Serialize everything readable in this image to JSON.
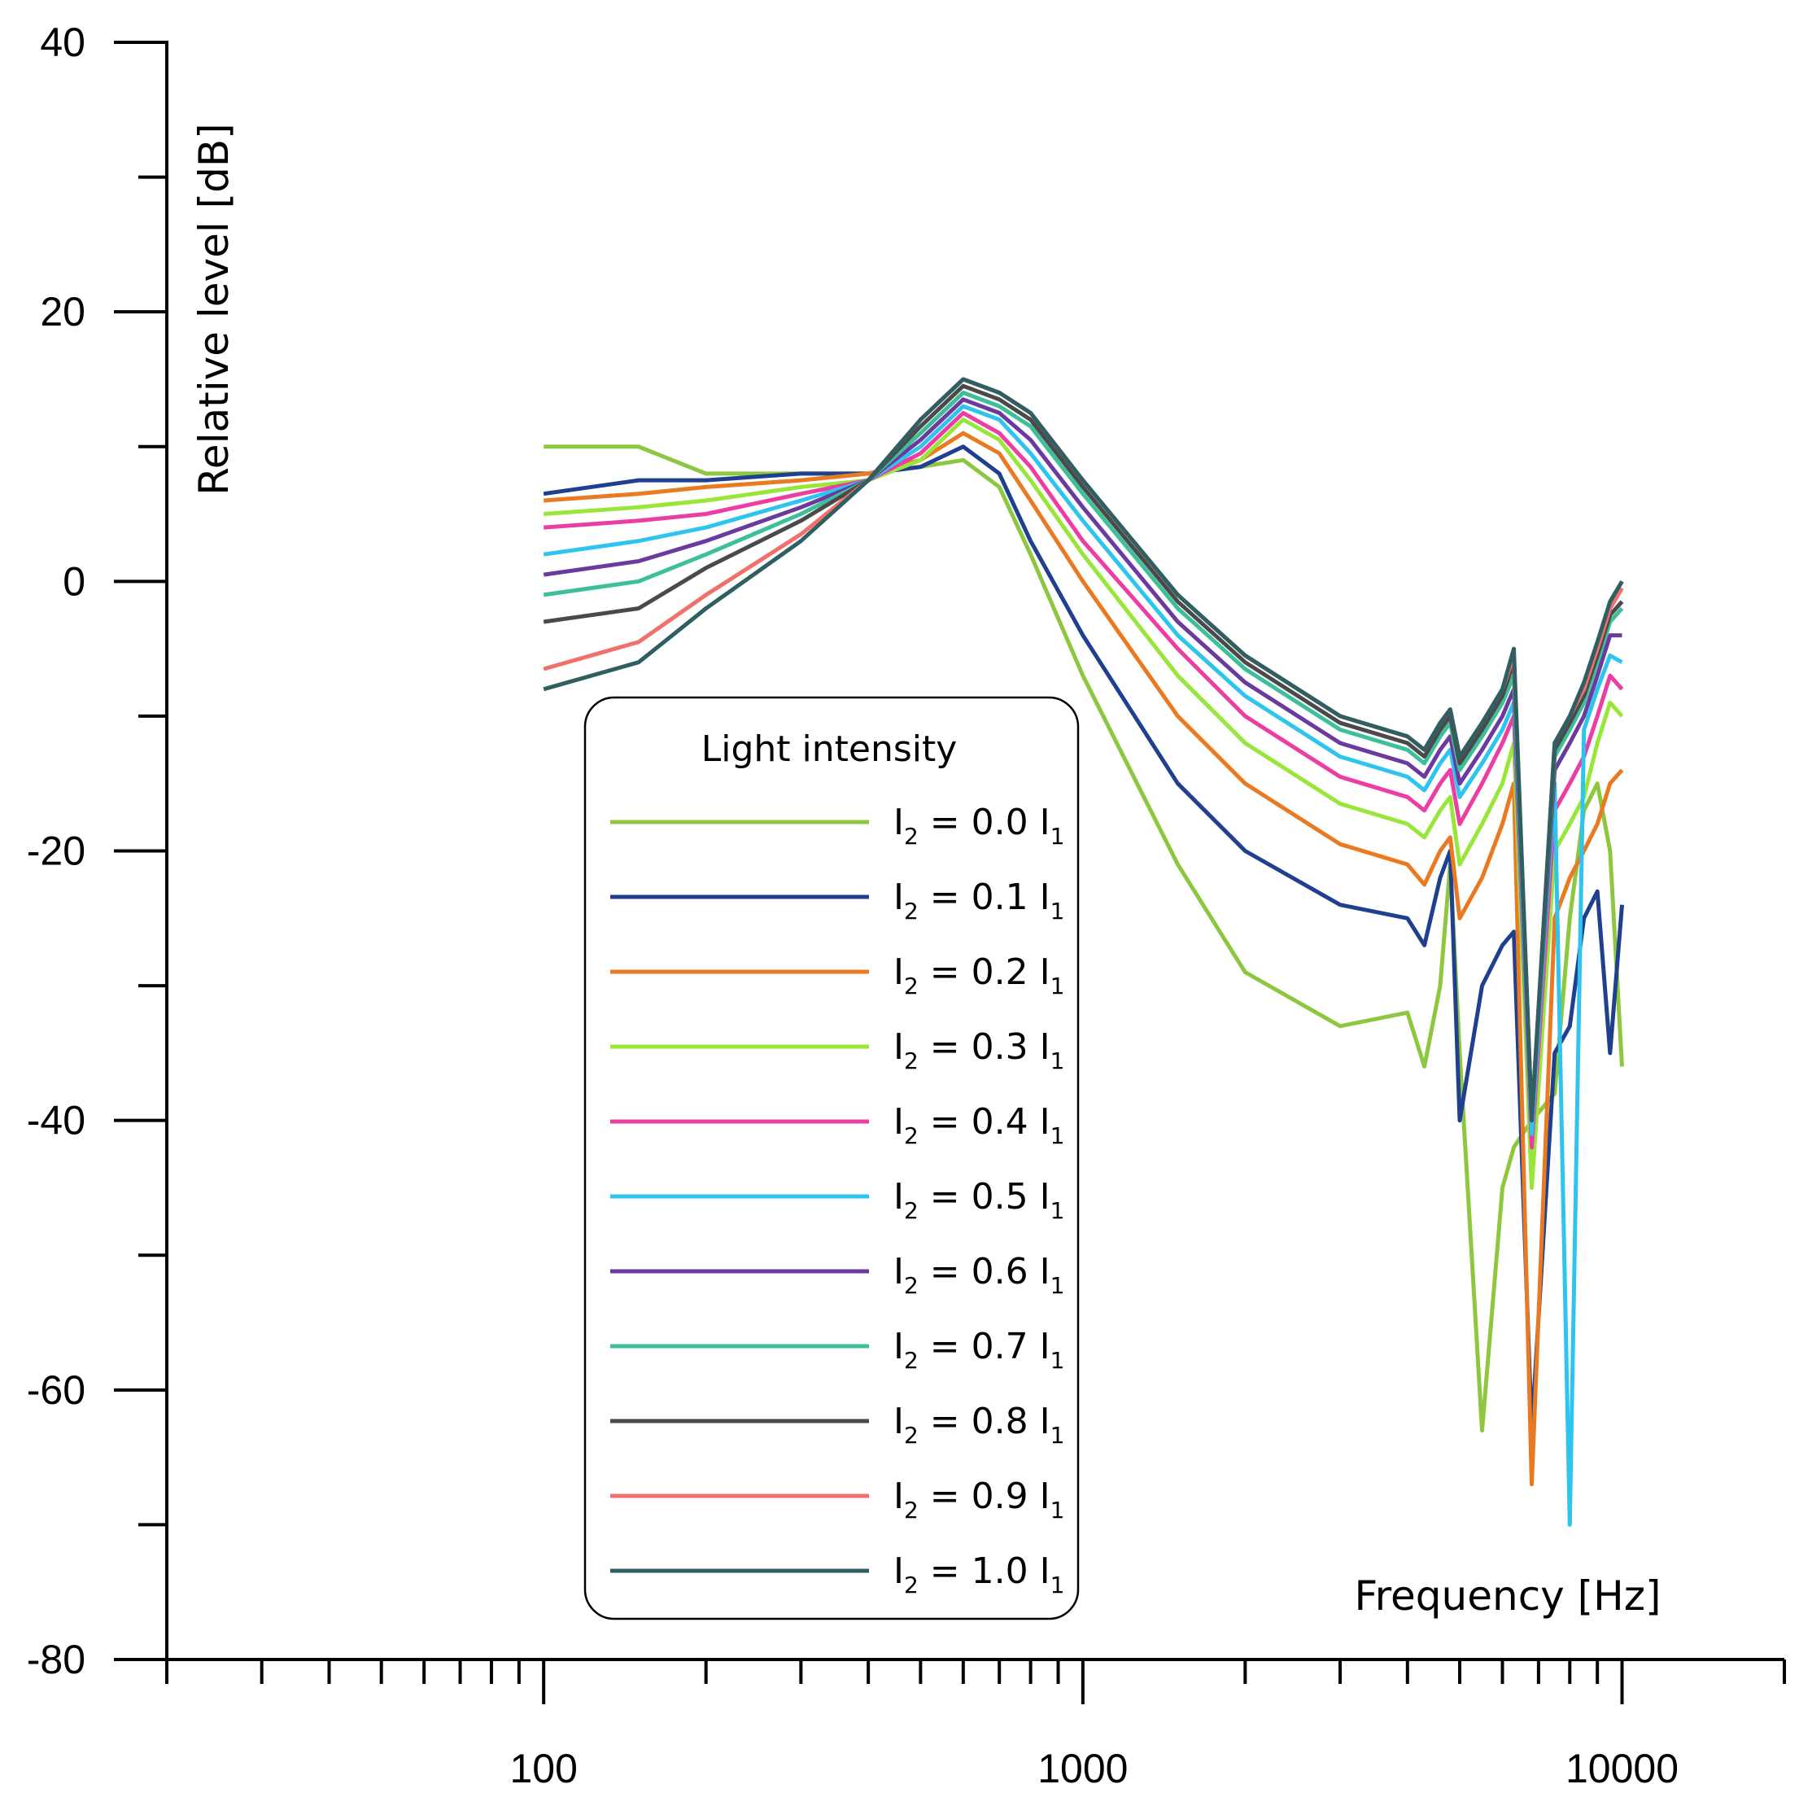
{
  "chart_data": {
    "type": "line",
    "xlabel": "Frequency [Hz]",
    "ylabel": "Relative level [dB]",
    "x_scale": "log",
    "xlim": [
      20,
      20000
    ],
    "ylim": [
      -80,
      40
    ],
    "x_tick_labels": [
      "100",
      "1000",
      "10000"
    ],
    "y_tick_labels": [
      "40",
      "20",
      "0",
      "-20",
      "-40",
      "-60",
      "-80"
    ],
    "grid": false,
    "legend": {
      "title": "Light intensity",
      "placement": "center-left",
      "entries": [
        {
          "prefix": "I",
          "sub": "2",
          "mid": " = 0.0 I",
          "sub2": "1"
        },
        {
          "prefix": "I",
          "sub": "2",
          "mid": " = 0.1 I",
          "sub2": "1"
        },
        {
          "prefix": "I",
          "sub": "2",
          "mid": " = 0.2 I",
          "sub2": "1"
        },
        {
          "prefix": "I",
          "sub": "2",
          "mid": " = 0.3 I",
          "sub2": "1"
        },
        {
          "prefix": "I",
          "sub": "2",
          "mid": " = 0.4 I",
          "sub2": "1"
        },
        {
          "prefix": "I",
          "sub": "2",
          "mid": " = 0.5 I",
          "sub2": "1"
        },
        {
          "prefix": "I",
          "sub": "2",
          "mid": " = 0.6 I",
          "sub2": "1"
        },
        {
          "prefix": "I",
          "sub": "2",
          "mid": " = 0.7 I",
          "sub2": "1"
        },
        {
          "prefix": "I",
          "sub": "2",
          "mid": " = 0.8 I",
          "sub2": "1"
        },
        {
          "prefix": "I",
          "sub": "2",
          "mid": " = 0.9 I",
          "sub2": "1"
        },
        {
          "prefix": "I",
          "sub": "2",
          "mid": " = 1.0 I",
          "sub2": "1"
        }
      ]
    },
    "x": [
      100,
      150,
      200,
      300,
      400,
      500,
      600,
      700,
      800,
      1000,
      1500,
      2000,
      3000,
      4000,
      4300,
      4600,
      4800,
      5000,
      5500,
      6000,
      6300,
      6800,
      7500,
      8000,
      8500,
      9000,
      9500,
      10000
    ],
    "series": [
      {
        "name": "I2 = 0.0 I1",
        "color": "#8dc63f",
        "values": [
          10,
          10,
          8,
          8,
          8,
          8.5,
          9,
          7,
          2,
          -7,
          -21,
          -29,
          -33,
          -32,
          -36,
          -30,
          -21,
          -35,
          -63,
          -45,
          -42,
          -40,
          -38,
          -25,
          -17,
          -15,
          -20,
          -36
        ]
      },
      {
        "name": "I2 = 0.1 I1",
        "color": "#1f3f8f",
        "values": [
          6.5,
          7.5,
          7.5,
          8,
          8,
          8.5,
          10,
          8,
          3,
          -4,
          -15,
          -20,
          -24,
          -25,
          -27,
          -22,
          -20,
          -40,
          -30,
          -27,
          -26,
          -63,
          -35,
          -33,
          -25,
          -23,
          -35,
          -24
        ]
      },
      {
        "name": "I2 = 0.2 I1",
        "color": "#ea7a21",
        "values": [
          6,
          6.5,
          7,
          7.5,
          8,
          9,
          11,
          9.5,
          6,
          0,
          -10,
          -15,
          -19.5,
          -21,
          -22.5,
          -20,
          -19,
          -25,
          -22,
          -18,
          -15,
          -67,
          -25,
          -22,
          -20,
          -18,
          -15,
          -14
        ]
      },
      {
        "name": "I2 = 0.3 I1",
        "color": "#99e63a",
        "values": [
          5,
          5.5,
          6,
          7,
          7.5,
          9,
          12,
          10.5,
          7.5,
          2,
          -7,
          -12,
          -16.5,
          -18,
          -19,
          -17,
          -16,
          -21,
          -18,
          -15,
          -12,
          -45,
          -20,
          -18,
          -16,
          -12,
          -9,
          -10
        ]
      },
      {
        "name": "I2 = 0.4 I1",
        "color": "#ec3ea2",
        "values": [
          4,
          4.5,
          5,
          6.5,
          7.5,
          9.5,
          12.5,
          11,
          8.5,
          3,
          -5,
          -10,
          -14.5,
          -16,
          -17,
          -15,
          -14,
          -18,
          -15,
          -12,
          -10,
          -42,
          -17,
          -15,
          -13,
          -10,
          -7,
          -8
        ]
      },
      {
        "name": "I2 = 0.5 I1",
        "color": "#2ec4ee",
        "values": [
          2,
          3,
          4,
          6,
          7.5,
          10,
          13,
          12,
          9.5,
          4.5,
          -4,
          -8.5,
          -13,
          -14.5,
          -15.5,
          -13.5,
          -12.5,
          -16,
          -13.5,
          -11,
          -9,
          -41,
          -15,
          -70,
          -11,
          -8,
          -5.5,
          -6
        ]
      },
      {
        "name": "I2 = 0.6 I1",
        "color": "#6b3a9e",
        "values": [
          0.5,
          1.5,
          3,
          5.5,
          7.5,
          10.5,
          13.5,
          12.5,
          10.5,
          5.5,
          -3,
          -7.5,
          -12,
          -13.5,
          -14.5,
          -12.5,
          -11.5,
          -15,
          -12.5,
          -10,
          -8,
          -40,
          -14,
          -12,
          -10,
          -7,
          -4,
          -4
        ]
      },
      {
        "name": "I2 = 0.7 I1",
        "color": "#3dbf9b",
        "values": [
          -1,
          0,
          2,
          5,
          7.5,
          11,
          14,
          13,
          11.5,
          6.5,
          -2,
          -6.5,
          -11,
          -12.5,
          -13.5,
          -11.5,
          -10.5,
          -14,
          -11.5,
          -9,
          -7,
          -40,
          -13,
          -11,
          -9,
          -6,
          -3,
          -2
        ]
      },
      {
        "name": "I2 = 0.8 I1",
        "color": "#4a4a4a",
        "values": [
          -3,
          -2,
          1,
          4.5,
          7.5,
          11.5,
          14.5,
          13.5,
          12,
          7,
          -1.5,
          -6,
          -10.5,
          -12,
          -13,
          -11,
          -10,
          -13.5,
          -11,
          -8.5,
          -6,
          -40,
          -12.5,
          -10.5,
          -8.5,
          -5.5,
          -2.5,
          -1.5
        ]
      },
      {
        "name": "I2 = 0.9 I1",
        "color": "#f0716b",
        "values": [
          -6.5,
          -4.5,
          -1,
          3.5,
          7.5,
          12,
          15,
          14,
          12.5,
          7.5,
          -1,
          -5.5,
          -10,
          -11.5,
          -12.5,
          -10.5,
          -9.5,
          -13,
          -10.5,
          -8,
          -5.5,
          -40,
          -12,
          -10,
          -8,
          -5,
          -2,
          -0.5
        ]
      },
      {
        "name": "I2 = 1.0 I1",
        "color": "#2f5f62",
        "values": [
          -8,
          -6,
          -2,
          3,
          7.5,
          12,
          15,
          14,
          12.5,
          7.5,
          -1,
          -5.5,
          -10,
          -11.5,
          -12.5,
          -10.5,
          -9.5,
          -13,
          -10.5,
          -8,
          -5,
          -40,
          -12,
          -10,
          -7.5,
          -4.5,
          -1.5,
          0
        ]
      }
    ]
  }
}
